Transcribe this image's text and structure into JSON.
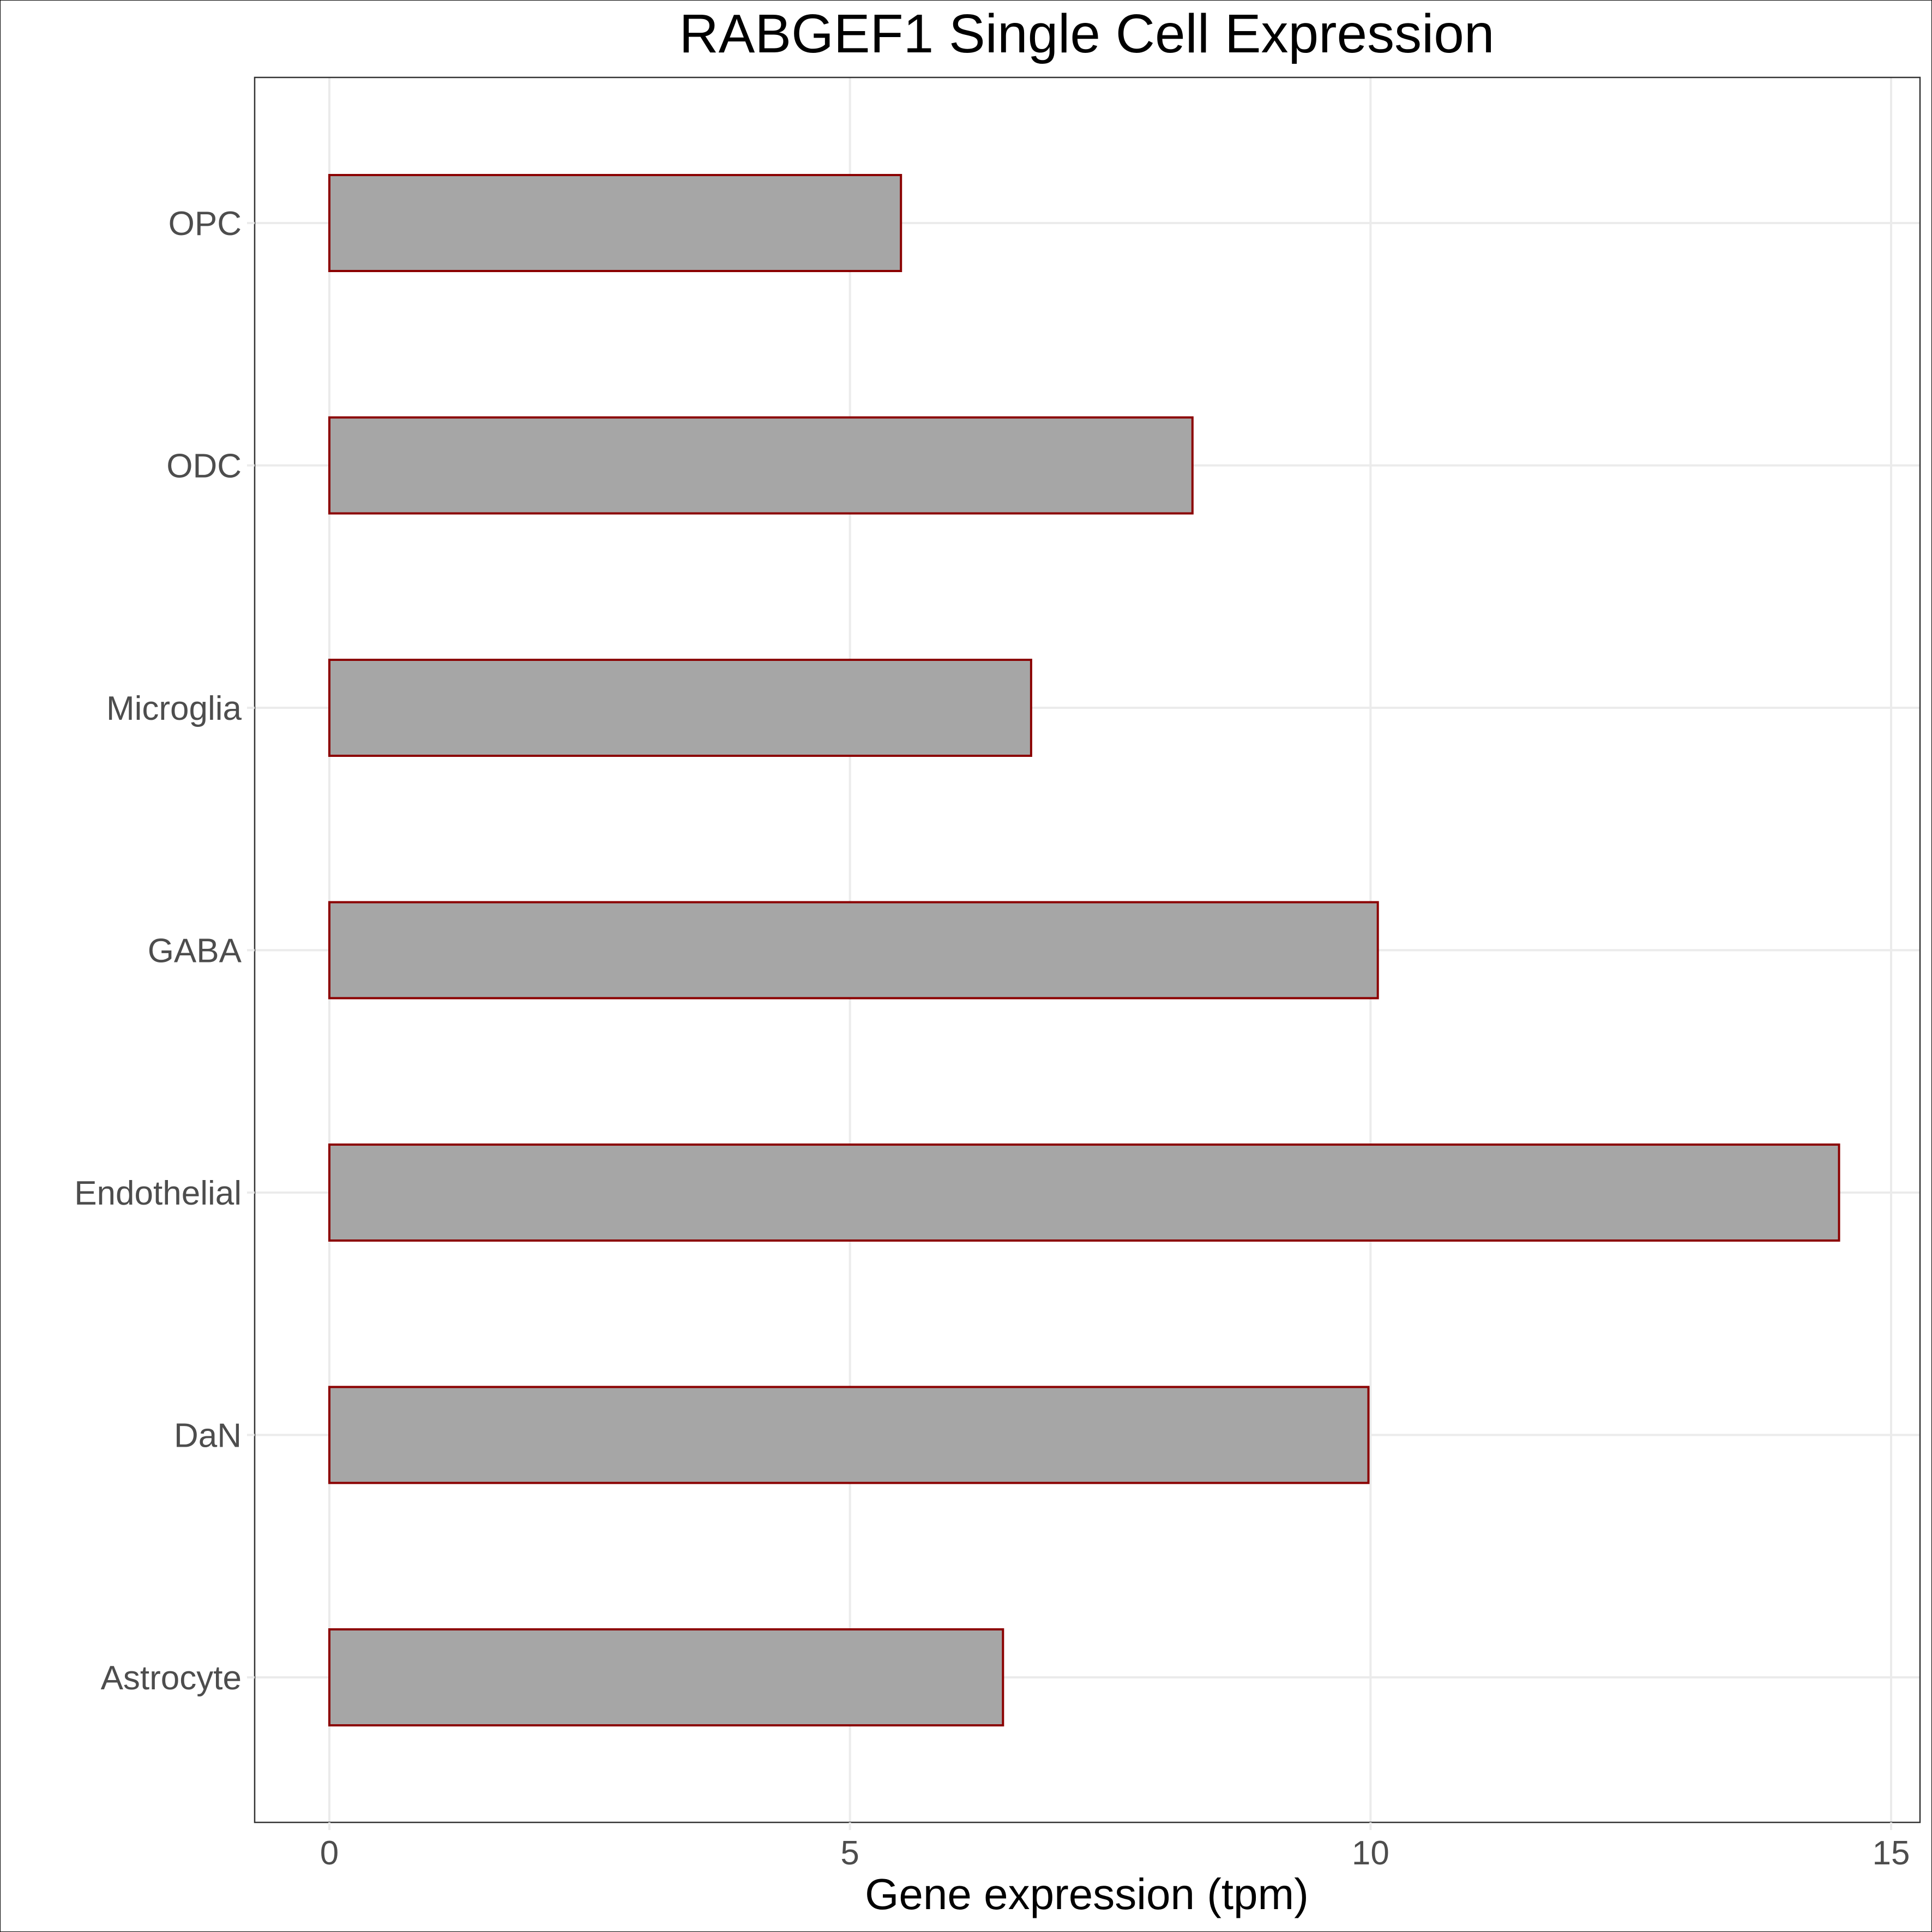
{
  "chart_data": {
    "type": "bar",
    "orientation": "horizontal",
    "title": "RABGEF1 Single Cell Expression",
    "xlabel": "Gene expression (tpm)",
    "ylabel": "",
    "categories": [
      "Astrocyte",
      "DaN",
      "Endothelial",
      "GABA",
      "Microglia",
      "ODC",
      "OPC"
    ],
    "values": [
      6.47,
      9.98,
      14.5,
      10.07,
      6.74,
      8.29,
      5.49
    ],
    "xlim": [
      0,
      15
    ],
    "xticks": [
      0,
      5,
      10,
      15
    ],
    "grid": true,
    "legend": "none",
    "colors": {
      "bar_fill": "#a6a6a6",
      "bar_outline": "#8b0000"
    }
  }
}
